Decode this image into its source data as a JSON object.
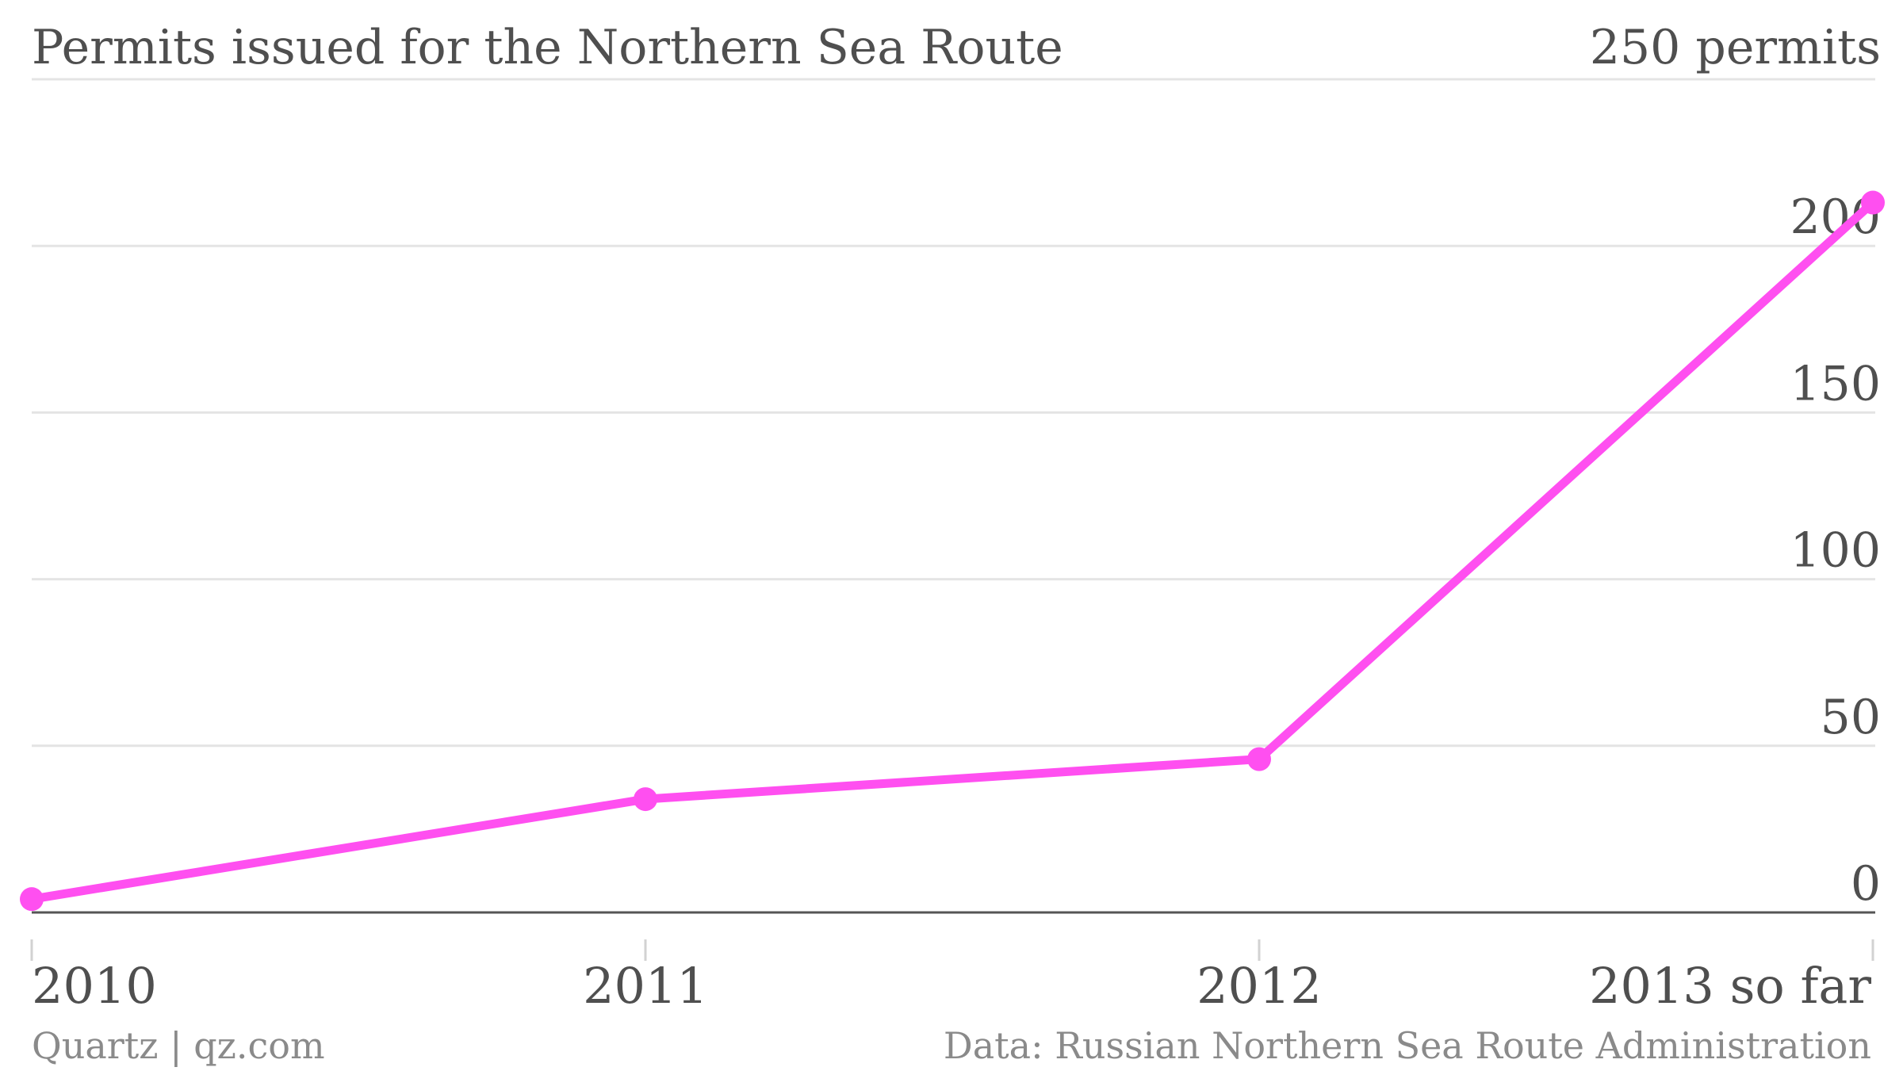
{
  "chart_data": {
    "type": "line",
    "title": "Permits issued for the Northern Sea Route",
    "unit_label": "250 permits",
    "categories": [
      "2010",
      "2011",
      "2012",
      "2013 so far"
    ],
    "series": [
      {
        "values": [
          4,
          34,
          46,
          213
        ]
      }
    ],
    "ylim": [
      0,
      250
    ],
    "yticks": [
      "0",
      "50",
      "100",
      "150",
      "200"
    ],
    "ytick_values": [
      0,
      50,
      100,
      150,
      200
    ],
    "grid": true,
    "legend": "none",
    "y_axis_side": "right",
    "line_color": "#ff4ff0"
  },
  "footer": {
    "credit": "Quartz | qz.com",
    "source": "Data: Russian Northern Sea Route Administration"
  }
}
